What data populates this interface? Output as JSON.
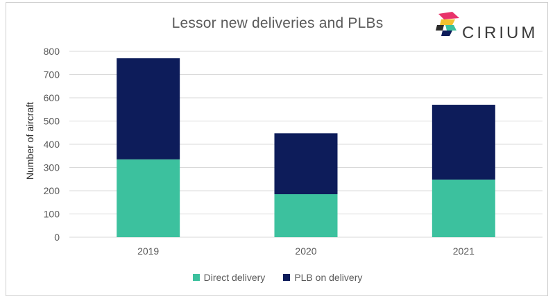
{
  "chart_data": {
    "type": "bar",
    "stacked": true,
    "title": "Lessor new deliveries and PLBs",
    "xlabel": "",
    "ylabel": "Number of aircraft",
    "categories": [
      "2019",
      "2020",
      "2021"
    ],
    "series": [
      {
        "name": "Direct delivery",
        "values": [
          335,
          185,
          248
        ],
        "color": "#3cc19e"
      },
      {
        "name": "PLB on delivery",
        "values": [
          435,
          262,
          322
        ],
        "color": "#0d1c5a"
      }
    ],
    "ylim": [
      0,
      800
    ],
    "yticks": [
      0,
      100,
      200,
      300,
      400,
      500,
      600,
      700,
      800
    ],
    "grid": true,
    "legend_position": "bottom"
  },
  "logo": {
    "text": "CIRIUM"
  },
  "colors": {
    "gridline": "#d9d9d9",
    "axis_text": "#595959"
  }
}
